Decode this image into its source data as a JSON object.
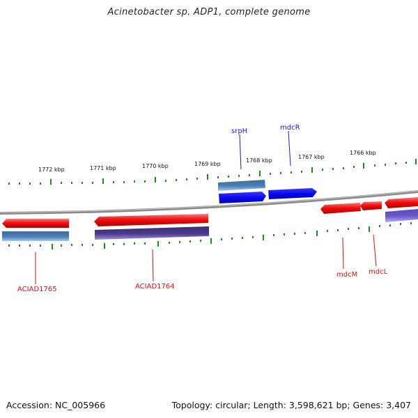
{
  "title": "Acinetobacter sp. ADP1, complete genome",
  "footer": {
    "accession": "Accession: NC_005966",
    "topology": "Topology: circular; Length: 3,598,621 bp; Genes: 3,407"
  },
  "ruler": {
    "unit": "kbp",
    "ticks": [
      "1772 kbp",
      "1771 kbp",
      "1770 kbp",
      "1769 kbp",
      "1768 kbp",
      "1767 kbp",
      "1766 kbp"
    ]
  },
  "gene_labels": [
    {
      "id": "srpH",
      "text": "srpH",
      "color": "#1a1ab4"
    },
    {
      "id": "mdcR",
      "text": "mdcR",
      "color": "#1a1ab4"
    },
    {
      "id": "ACIAD1765",
      "text": "ACIAD1765",
      "color": "#cc1111"
    },
    {
      "id": "ACIAD1764",
      "text": "ACIAD1764",
      "color": "#cc1111"
    },
    {
      "id": "mdcM",
      "text": "mdcM",
      "color": "#cc1111"
    },
    {
      "id": "mdcL",
      "text": "mdcL",
      "color": "#cc1111"
    }
  ],
  "colors": {
    "gene_red": "#ee1111",
    "gene_blue": "#0a0af0",
    "cds_steel": "#4a7fb5",
    "cds_purple": "#4b3a8c",
    "cds_lavender": "#6a5acd",
    "tick_green": "#1c8a1c",
    "backbone": "#7a7a7a"
  }
}
